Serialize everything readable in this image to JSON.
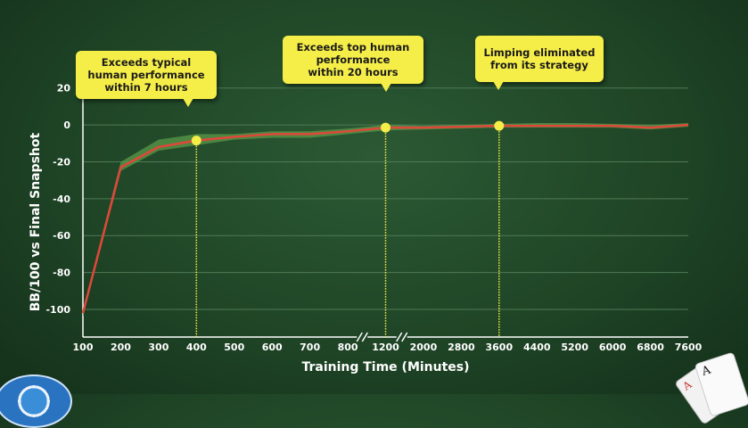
{
  "chart_data": {
    "type": "line",
    "xlabel": "Training Time (Minutes)",
    "ylabel": "BB/100 vs Final Snapshot",
    "x_ticks": [
      "100",
      "200",
      "300",
      "400",
      "500",
      "600",
      "700",
      "800",
      "1200",
      "2000",
      "2800",
      "3600",
      "4400",
      "5200",
      "6000",
      "6800",
      "7600"
    ],
    "y_ticks": [
      20,
      0,
      -20,
      -40,
      -60,
      -80,
      -100
    ],
    "ylim": [
      -115,
      30
    ],
    "axis_breaks": [
      "800-1200",
      "1200-2000"
    ],
    "grid": true,
    "series": [
      {
        "values": [
          -102,
          -23,
          -12,
          -8.5,
          -6.5,
          -5,
          -5,
          -3.5,
          -1.5,
          -1.5,
          -1,
          -0.5,
          -0.5,
          -0.5,
          -0.5,
          -1.5,
          0
        ],
        "color": "#e0473a",
        "band_low": [
          -104,
          -25,
          -14,
          -11,
          -8,
          -7,
          -7,
          -5,
          -3,
          -2.5,
          -2,
          -1.5,
          -1.5,
          -1.5,
          -1.5,
          -2.5,
          -1
        ],
        "band_high": [
          -100,
          -20,
          -8,
          -5,
          -5,
          -3.5,
          -3.5,
          -2,
          0,
          -0.5,
          0,
          0.5,
          1,
          1,
          0.5,
          0,
          1
        ],
        "band_color": "#5a9a4a"
      }
    ],
    "annotations": [
      {
        "x": "400",
        "y": -8.5,
        "text_lines": [
          "Exceeds typical",
          "human performance",
          "within 7 hours"
        ]
      },
      {
        "x": "1200",
        "y": -1.5,
        "text_lines": [
          "Exceeds top human",
          "performance",
          "within 20 hours"
        ]
      },
      {
        "x": "3600",
        "y": -0.5,
        "text_lines": [
          "Limping eliminated",
          "from its strategy"
        ]
      }
    ],
    "colors": {
      "line": "#e0473a",
      "band": "#5a9a4a",
      "marker": "#f6ee48",
      "grid": "#4f7a55",
      "text": "#ffffff"
    }
  },
  "decor": {
    "card_front_rank": "A",
    "card_back_rank": "A"
  }
}
